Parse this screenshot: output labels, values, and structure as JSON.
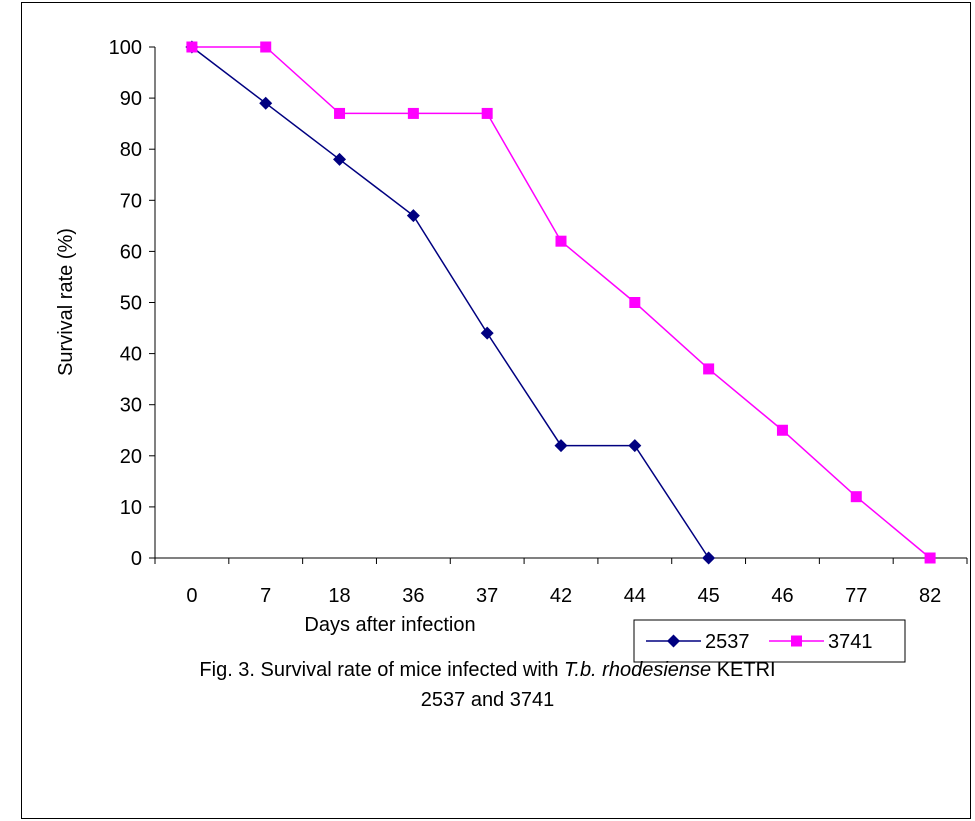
{
  "chart_data": {
    "type": "line",
    "xlabel": "Days after infection",
    "ylabel": "Survival rate (%)",
    "categories": [
      "0",
      "7",
      "18",
      "36",
      "37",
      "42",
      "44",
      "45",
      "46",
      "77",
      "82"
    ],
    "ylim": [
      0,
      100
    ],
    "yticks": [
      0,
      10,
      20,
      30,
      40,
      50,
      60,
      70,
      80,
      90,
      100
    ],
    "grid": false,
    "legend_position": "bottom-right",
    "series": [
      {
        "name": "2537",
        "color": "#000080",
        "marker": "diamond",
        "values": [
          100,
          89,
          78,
          67,
          44,
          22,
          22,
          0,
          null,
          null,
          null
        ]
      },
      {
        "name": "3741",
        "color": "#FF00FF",
        "marker": "square",
        "values": [
          100,
          100,
          87,
          87,
          87,
          62,
          50,
          37,
          25,
          12,
          0
        ]
      }
    ]
  },
  "caption": {
    "prefix": "Fig. 3. Survival rate of mice infected with ",
    "species": "T.b. rhodesiense",
    "suffix": " KETRI",
    "line2": "2537 and 3741"
  }
}
